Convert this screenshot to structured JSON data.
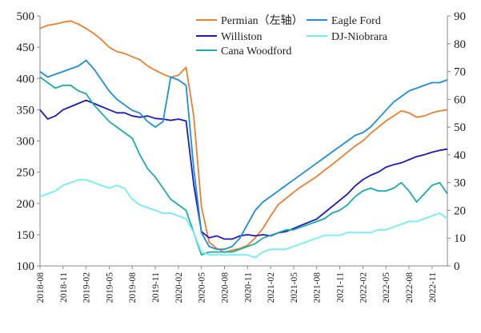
{
  "chart_data": {
    "type": "line",
    "title": "",
    "xlabel": "",
    "ylabel_left": "",
    "ylabel_right": "",
    "ylim_left": [
      100,
      500
    ],
    "ylim_right": [
      0,
      90
    ],
    "yticks_left": [
      100,
      150,
      200,
      250,
      300,
      350,
      400,
      450,
      500
    ],
    "yticks_right": [
      0,
      10,
      20,
      30,
      40,
      50,
      60,
      70,
      80,
      90
    ],
    "xrange": [
      "2018-08",
      "2023-01"
    ],
    "xticks": [
      "2018-08",
      "2018-11",
      "2019-02",
      "2019-05",
      "2019-08",
      "2019-11",
      "2020-02",
      "2020-05",
      "2020-08",
      "2020-11",
      "2021-02",
      "2021-05",
      "2021-08",
      "2021-11",
      "2022-02",
      "2022-05",
      "2022-08",
      "2022-11"
    ],
    "grid": false,
    "legend_position": "top-right, two columns",
    "series": [
      {
        "name": "Permian（左轴）",
        "axis": "left",
        "color": "#f07f2a",
        "x": [
          "2018-08",
          "2018-09",
          "2018-10",
          "2018-11",
          "2018-12",
          "2019-01",
          "2019-02",
          "2019-03",
          "2019-04",
          "2019-05",
          "2019-06",
          "2019-07",
          "2019-08",
          "2019-09",
          "2019-10",
          "2019-11",
          "2019-12",
          "2020-01",
          "2020-02",
          "2020-03",
          "2020-04",
          "2020-05",
          "2020-06",
          "2020-07",
          "2020-08",
          "2020-09",
          "2020-10",
          "2020-11",
          "2020-12",
          "2021-01",
          "2021-02",
          "2021-03",
          "2021-04",
          "2021-05",
          "2021-06",
          "2021-07",
          "2021-08",
          "2021-09",
          "2021-10",
          "2021-11",
          "2021-12",
          "2022-01",
          "2022-02",
          "2022-03",
          "2022-04",
          "2022-05",
          "2022-06",
          "2022-07",
          "2022-08",
          "2022-09",
          "2022-10",
          "2022-11",
          "2022-12",
          "2023-01"
        ],
        "values": [
          480,
          485,
          487,
          490,
          492,
          487,
          480,
          472,
          462,
          450,
          443,
          440,
          435,
          430,
          420,
          413,
          407,
          402,
          405,
          418,
          340,
          195,
          138,
          128,
          122,
          125,
          128,
          133,
          145,
          160,
          180,
          198,
          208,
          218,
          227,
          235,
          243,
          253,
          262,
          272,
          282,
          292,
          300,
          312,
          322,
          332,
          340,
          348,
          345,
          338,
          340,
          345,
          348,
          350
        ]
      },
      {
        "name": "Williston",
        "axis": "left",
        "color": "#1c19c4",
        "x": [
          "2018-08",
          "2018-09",
          "2018-10",
          "2018-11",
          "2018-12",
          "2019-01",
          "2019-02",
          "2019-03",
          "2019-04",
          "2019-05",
          "2019-06",
          "2019-07",
          "2019-08",
          "2019-09",
          "2019-10",
          "2019-11",
          "2019-12",
          "2020-01",
          "2020-02",
          "2020-03",
          "2020-04",
          "2020-05",
          "2020-06",
          "2020-07",
          "2020-08",
          "2020-09",
          "2020-10",
          "2020-11",
          "2020-12",
          "2021-01",
          "2021-02",
          "2021-03",
          "2021-04",
          "2021-05",
          "2021-06",
          "2021-07",
          "2021-08",
          "2021-09",
          "2021-10",
          "2021-11",
          "2021-12",
          "2022-01",
          "2022-02",
          "2022-03",
          "2022-04",
          "2022-05",
          "2022-06",
          "2022-07",
          "2022-08",
          "2022-09",
          "2022-10",
          "2022-11",
          "2022-12",
          "2023-01"
        ],
        "values": [
          350,
          335,
          340,
          350,
          355,
          360,
          365,
          360,
          355,
          350,
          345,
          345,
          340,
          338,
          340,
          336,
          335,
          333,
          335,
          332,
          230,
          155,
          145,
          148,
          143,
          143,
          148,
          150,
          148,
          150,
          148,
          153,
          155,
          160,
          165,
          170,
          175,
          185,
          195,
          205,
          215,
          228,
          238,
          245,
          250,
          258,
          262,
          265,
          270,
          275,
          278,
          282,
          285,
          287
        ]
      },
      {
        "name": "Cana Woodford",
        "axis": "right",
        "color": "#17b0aa",
        "x": [
          "2018-08",
          "2018-09",
          "2018-10",
          "2018-11",
          "2018-12",
          "2019-01",
          "2019-02",
          "2019-03",
          "2019-04",
          "2019-05",
          "2019-06",
          "2019-07",
          "2019-08",
          "2019-09",
          "2019-10",
          "2019-11",
          "2019-12",
          "2020-01",
          "2020-02",
          "2020-03",
          "2020-04",
          "2020-05",
          "2020-06",
          "2020-07",
          "2020-08",
          "2020-09",
          "2020-10",
          "2020-11",
          "2020-12",
          "2021-01",
          "2021-02",
          "2021-03",
          "2021-04",
          "2021-05",
          "2021-06",
          "2021-07",
          "2021-08",
          "2021-09",
          "2021-10",
          "2021-11",
          "2021-12",
          "2022-01",
          "2022-02",
          "2022-03",
          "2022-04",
          "2022-05",
          "2022-06",
          "2022-07",
          "2022-08",
          "2022-09",
          "2022-10",
          "2022-11",
          "2022-12",
          "2023-01"
        ],
        "values": [
          68,
          66,
          64,
          65,
          65,
          63,
          62,
          58,
          55,
          52,
          50,
          48,
          46,
          40,
          35,
          32,
          28,
          24,
          22,
          20,
          12,
          4,
          5,
          5,
          5,
          5,
          6,
          7,
          8,
          10,
          11,
          12,
          13,
          13,
          14,
          15,
          16,
          17,
          19,
          20,
          22,
          25,
          27,
          28,
          27,
          27,
          28,
          30,
          27,
          23,
          26,
          29,
          30,
          26
        ]
      },
      {
        "name": "Eagle Ford",
        "axis": "right",
        "color": "#1a8fe0",
        "x": [
          "2018-08",
          "2018-09",
          "2018-10",
          "2018-11",
          "2018-12",
          "2019-01",
          "2019-02",
          "2019-03",
          "2019-04",
          "2019-05",
          "2019-06",
          "2019-07",
          "2019-08",
          "2019-09",
          "2019-10",
          "2019-11",
          "2019-12",
          "2020-01",
          "2020-02",
          "2020-03",
          "2020-04",
          "2020-05",
          "2020-06",
          "2020-07",
          "2020-08",
          "2020-09",
          "2020-10",
          "2020-11",
          "2020-12",
          "2021-01",
          "2021-02",
          "2021-03",
          "2021-04",
          "2021-05",
          "2021-06",
          "2021-07",
          "2021-08",
          "2021-09",
          "2021-10",
          "2021-11",
          "2021-12",
          "2022-01",
          "2022-02",
          "2022-03",
          "2022-04",
          "2022-05",
          "2022-06",
          "2022-07",
          "2022-08",
          "2022-09",
          "2022-10",
          "2022-11",
          "2022-12",
          "2023-01"
        ],
        "values": [
          70,
          68,
          69,
          70,
          71,
          72,
          74,
          71,
          67,
          63,
          60,
          58,
          56,
          55,
          52,
          50,
          52,
          68,
          67,
          65,
          35,
          12,
          7,
          6,
          6,
          7,
          10,
          15,
          20,
          23,
          25,
          27,
          29,
          31,
          33,
          35,
          37,
          39,
          41,
          43,
          45,
          47,
          48,
          50,
          53,
          56,
          59,
          61,
          63,
          64,
          65,
          66,
          66,
          67
        ]
      },
      {
        "name": "DJ-Niobrara",
        "axis": "right",
        "color": "#6ff0f0",
        "x": [
          "2018-08",
          "2018-09",
          "2018-10",
          "2018-11",
          "2018-12",
          "2019-01",
          "2019-02",
          "2019-03",
          "2019-04",
          "2019-05",
          "2019-06",
          "2019-07",
          "2019-08",
          "2019-09",
          "2019-10",
          "2019-11",
          "2019-12",
          "2020-01",
          "2020-02",
          "2020-03",
          "2020-04",
          "2020-05",
          "2020-06",
          "2020-07",
          "2020-08",
          "2020-09",
          "2020-10",
          "2020-11",
          "2020-12",
          "2021-01",
          "2021-02",
          "2021-03",
          "2021-04",
          "2021-05",
          "2021-06",
          "2021-07",
          "2021-08",
          "2021-09",
          "2021-10",
          "2021-11",
          "2021-12",
          "2022-01",
          "2022-02",
          "2022-03",
          "2022-04",
          "2022-05",
          "2022-06",
          "2022-07",
          "2022-08",
          "2022-09",
          "2022-10",
          "2022-11",
          "2022-12",
          "2023-01"
        ],
        "values": [
          25,
          26,
          27,
          29,
          30,
          31,
          31,
          30,
          29,
          28,
          29,
          28,
          24,
          22,
          21,
          20,
          19,
          19,
          18,
          17,
          12,
          5,
          4,
          4,
          4,
          4,
          4,
          4,
          3,
          5,
          6,
          6,
          6,
          7,
          8,
          9,
          10,
          11,
          11,
          11,
          12,
          12,
          12,
          12,
          13,
          13,
          14,
          15,
          16,
          16,
          17,
          18,
          19,
          17
        ]
      }
    ]
  }
}
